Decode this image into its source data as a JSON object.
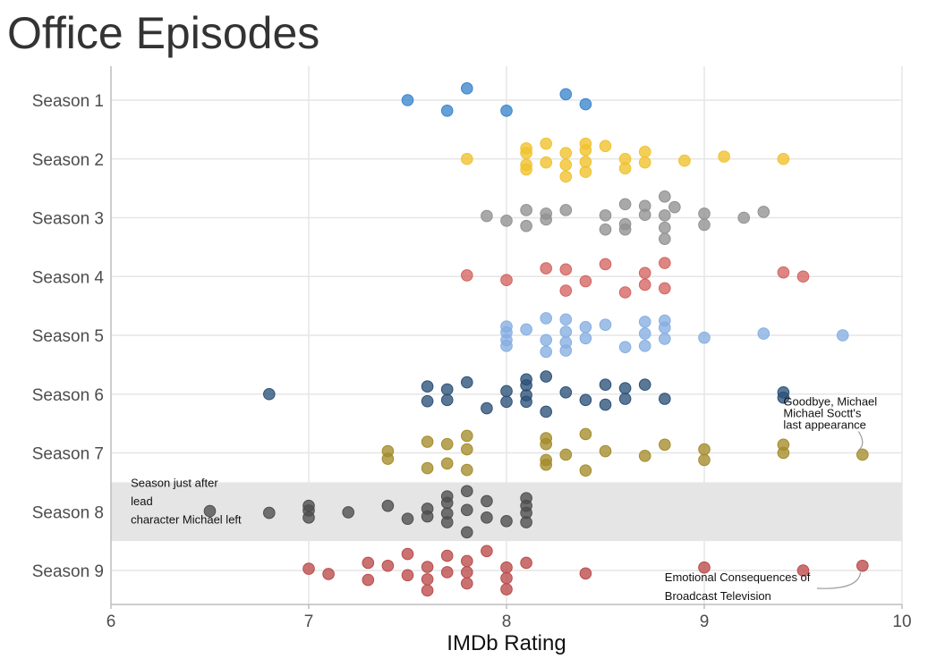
{
  "chart_data": {
    "type": "scatter",
    "title": "Office Episodes",
    "xlabel": "IMDb Rating",
    "ylabel": "",
    "xlim": [
      6,
      10
    ],
    "x_ticks": [
      6,
      7,
      8,
      9,
      10
    ],
    "categories": [
      "Season 1",
      "Season 2",
      "Season 3",
      "Season 4",
      "Season 5",
      "Season 6",
      "Season 7",
      "Season 8",
      "Season 9"
    ],
    "highlight_band": "Season 8",
    "series": [
      {
        "name": "Season 1",
        "color": "#3a85cc",
        "points": [
          [
            7.5,
            0.0
          ],
          [
            7.8,
            0.2
          ],
          [
            7.7,
            -0.18
          ],
          [
            8.0,
            -0.18
          ],
          [
            8.3,
            0.1
          ],
          [
            8.4,
            -0.07
          ]
        ]
      },
      {
        "name": "Season 2",
        "color": "#f0c22c",
        "points": [
          [
            7.8,
            0.0
          ],
          [
            8.1,
            0.18
          ],
          [
            8.1,
            0.1
          ],
          [
            8.1,
            -0.1
          ],
          [
            8.1,
            -0.18
          ],
          [
            8.2,
            0.26
          ],
          [
            8.2,
            -0.06
          ],
          [
            8.3,
            0.1
          ],
          [
            8.3,
            -0.1
          ],
          [
            8.3,
            -0.3
          ],
          [
            8.4,
            0.26
          ],
          [
            8.4,
            0.15
          ],
          [
            8.4,
            -0.05
          ],
          [
            8.4,
            -0.22
          ],
          [
            8.5,
            0.22
          ],
          [
            8.6,
            0.0
          ],
          [
            8.6,
            -0.16
          ],
          [
            8.7,
            0.12
          ],
          [
            8.7,
            -0.06
          ],
          [
            8.9,
            -0.03
          ],
          [
            9.1,
            0.04
          ],
          [
            9.4,
            0.0
          ]
        ]
      },
      {
        "name": "Season 3",
        "color": "#919191",
        "points": [
          [
            7.9,
            0.03
          ],
          [
            8.0,
            -0.05
          ],
          [
            8.1,
            0.13
          ],
          [
            8.1,
            -0.14
          ],
          [
            8.2,
            0.07
          ],
          [
            8.2,
            -0.03
          ],
          [
            8.3,
            0.13
          ],
          [
            8.5,
            0.04
          ],
          [
            8.5,
            -0.2
          ],
          [
            8.6,
            0.23
          ],
          [
            8.6,
            -0.11
          ],
          [
            8.6,
            -0.2
          ],
          [
            8.7,
            0.2
          ],
          [
            8.7,
            0.05
          ],
          [
            8.8,
            0.36
          ],
          [
            8.8,
            0.04
          ],
          [
            8.8,
            -0.17
          ],
          [
            8.8,
            -0.36
          ],
          [
            8.85,
            0.18
          ],
          [
            9.0,
            0.07
          ],
          [
            9.0,
            -0.12
          ],
          [
            9.2,
            0.0
          ],
          [
            9.3,
            0.1
          ]
        ]
      },
      {
        "name": "Season 4",
        "color": "#d46460",
        "points": [
          [
            7.8,
            0.02
          ],
          [
            8.0,
            -0.06
          ],
          [
            8.2,
            0.14
          ],
          [
            8.3,
            0.12
          ],
          [
            8.3,
            -0.24
          ],
          [
            8.4,
            -0.08
          ],
          [
            8.5,
            0.21
          ],
          [
            8.6,
            -0.27
          ],
          [
            8.7,
            0.06
          ],
          [
            8.7,
            -0.14
          ],
          [
            8.8,
            0.23
          ],
          [
            8.8,
            -0.2
          ],
          [
            9.4,
            0.07
          ],
          [
            9.5,
            0.0
          ]
        ]
      },
      {
        "name": "Season 5",
        "color": "#86aee2",
        "points": [
          [
            8.0,
            0.15
          ],
          [
            8.0,
            0.05
          ],
          [
            8.0,
            -0.08
          ],
          [
            8.0,
            -0.18
          ],
          [
            8.1,
            0.1
          ],
          [
            8.2,
            0.29
          ],
          [
            8.2,
            -0.08
          ],
          [
            8.2,
            -0.28
          ],
          [
            8.3,
            0.27
          ],
          [
            8.3,
            0.06
          ],
          [
            8.3,
            -0.12
          ],
          [
            8.3,
            -0.26
          ],
          [
            8.4,
            0.14
          ],
          [
            8.4,
            -0.05
          ],
          [
            8.5,
            0.18
          ],
          [
            8.6,
            -0.2
          ],
          [
            8.7,
            0.23
          ],
          [
            8.7,
            0.03
          ],
          [
            8.7,
            -0.18
          ],
          [
            8.8,
            0.25
          ],
          [
            8.8,
            0.13
          ],
          [
            8.8,
            -0.06
          ],
          [
            9.0,
            -0.04
          ],
          [
            9.3,
            0.03
          ],
          [
            9.7,
            0.0
          ]
        ]
      },
      {
        "name": "Season 6",
        "color": "#2b5178",
        "points": [
          [
            6.8,
            0.0
          ],
          [
            7.6,
            0.13
          ],
          [
            7.6,
            -0.12
          ],
          [
            7.7,
            0.08
          ],
          [
            7.7,
            -0.1
          ],
          [
            7.8,
            0.2
          ],
          [
            7.9,
            -0.24
          ],
          [
            8.0,
            0.05
          ],
          [
            8.0,
            -0.13
          ],
          [
            8.1,
            0.25
          ],
          [
            8.1,
            0.15
          ],
          [
            8.1,
            -0.02
          ],
          [
            8.1,
            -0.13
          ],
          [
            8.2,
            -0.3
          ],
          [
            8.2,
            0.3
          ],
          [
            8.3,
            0.03
          ],
          [
            8.4,
            -0.1
          ],
          [
            8.5,
            0.16
          ],
          [
            8.5,
            -0.18
          ],
          [
            8.6,
            0.1
          ],
          [
            8.6,
            -0.08
          ],
          [
            8.7,
            0.16
          ],
          [
            8.8,
            -0.08
          ],
          [
            9.4,
            0.03
          ],
          [
            9.4,
            -0.06
          ]
        ]
      },
      {
        "name": "Season 7",
        "color": "#a48c2a",
        "points": [
          [
            7.4,
            0.03
          ],
          [
            7.4,
            -0.1
          ],
          [
            7.6,
            0.19
          ],
          [
            7.6,
            -0.26
          ],
          [
            7.7,
            0.15
          ],
          [
            7.7,
            -0.18
          ],
          [
            7.8,
            0.29
          ],
          [
            7.8,
            0.06
          ],
          [
            7.8,
            -0.29
          ],
          [
            8.2,
            0.25
          ],
          [
            8.2,
            0.15
          ],
          [
            8.2,
            -0.12
          ],
          [
            8.2,
            -0.2
          ],
          [
            8.3,
            -0.03
          ],
          [
            8.4,
            0.32
          ],
          [
            8.4,
            -0.3
          ],
          [
            8.5,
            0.03
          ],
          [
            8.7,
            -0.05
          ],
          [
            8.8,
            0.14
          ],
          [
            9.0,
            0.06
          ],
          [
            9.0,
            -0.12
          ],
          [
            9.4,
            0.14
          ],
          [
            9.4,
            0.0
          ],
          [
            9.8,
            -0.03
          ]
        ]
      },
      {
        "name": "Season 8",
        "color": "#4d4d4d",
        "points": [
          [
            6.5,
            0.01
          ],
          [
            6.8,
            -0.02
          ],
          [
            7.0,
            0.1
          ],
          [
            7.0,
            0.02
          ],
          [
            7.0,
            -0.1
          ],
          [
            7.2,
            -0.01
          ],
          [
            7.4,
            0.1
          ],
          [
            7.5,
            -0.12
          ],
          [
            7.6,
            0.05
          ],
          [
            7.6,
            -0.08
          ],
          [
            7.7,
            0.26
          ],
          [
            7.7,
            0.15
          ],
          [
            7.7,
            -0.03
          ],
          [
            7.7,
            -0.18
          ],
          [
            7.8,
            0.35
          ],
          [
            7.8,
            0.03
          ],
          [
            7.8,
            -0.35
          ],
          [
            7.9,
            0.18
          ],
          [
            7.9,
            -0.1
          ],
          [
            8.0,
            -0.16
          ],
          [
            8.1,
            0.23
          ],
          [
            8.1,
            0.1
          ],
          [
            8.1,
            -0.02
          ],
          [
            8.1,
            -0.18
          ]
        ]
      },
      {
        "name": "Season 9",
        "color": "#bb4a4a",
        "points": [
          [
            7.0,
            0.03
          ],
          [
            7.1,
            -0.06
          ],
          [
            7.3,
            0.13
          ],
          [
            7.3,
            -0.16
          ],
          [
            7.4,
            0.08
          ],
          [
            7.5,
            0.28
          ],
          [
            7.5,
            -0.08
          ],
          [
            7.6,
            0.06
          ],
          [
            7.6,
            -0.15
          ],
          [
            7.6,
            -0.34
          ],
          [
            7.7,
            0.25
          ],
          [
            7.7,
            -0.03
          ],
          [
            7.8,
            0.16
          ],
          [
            7.8,
            -0.03
          ],
          [
            7.8,
            -0.22
          ],
          [
            7.9,
            0.33
          ],
          [
            8.0,
            0.05
          ],
          [
            8.0,
            -0.13
          ],
          [
            8.0,
            -0.32
          ],
          [
            8.1,
            0.13
          ],
          [
            8.4,
            -0.05
          ],
          [
            9.0,
            0.05
          ],
          [
            9.5,
            0.0
          ],
          [
            9.8,
            0.08
          ]
        ]
      }
    ],
    "annotations": [
      {
        "lines": [
          "Season just after",
          "lead",
          "character Michael left"
        ],
        "season": "Season 8",
        "x": 6.1
      },
      {
        "lines": [
          "Goodbye, Michael",
          "Michael Soctt's",
          "last appearance"
        ],
        "season": "Season 7",
        "x": 9.4
      },
      {
        "lines": [
          "Emotional Consequences of",
          "Broadcast Television"
        ],
        "season": "Season 9",
        "x": 8.8
      }
    ]
  }
}
